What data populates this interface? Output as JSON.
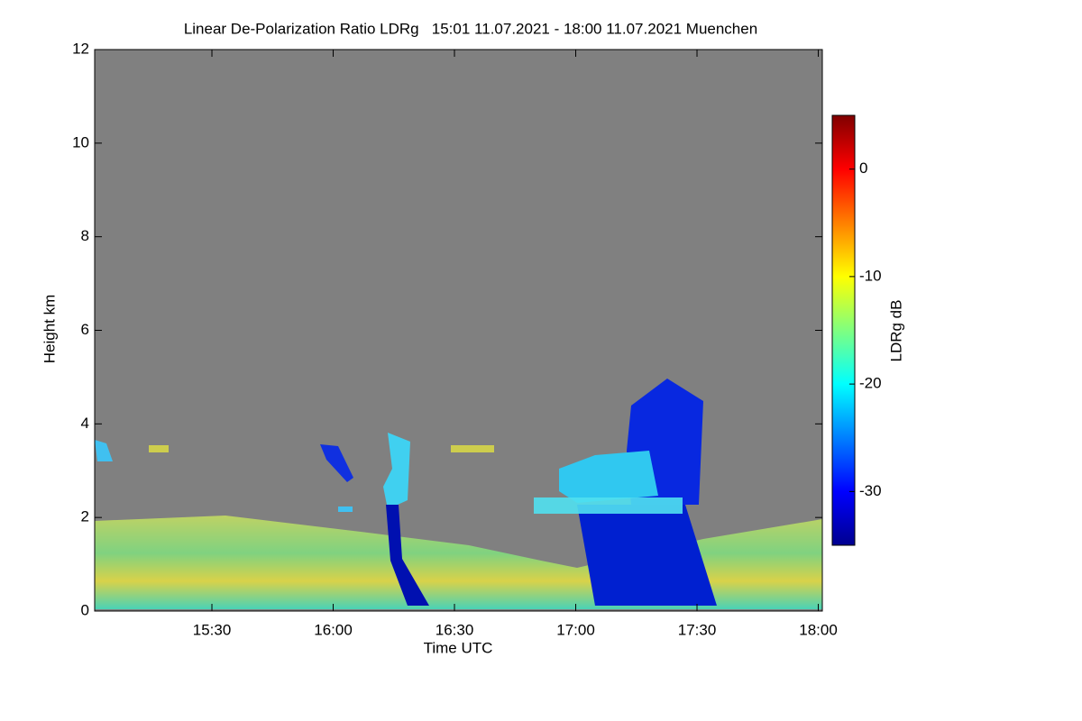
{
  "chart_data": {
    "type": "heatmap",
    "title": "Linear De-Polarization Ratio LDRg   15:01 11.07.2021 - 18:00 11.07.2021 Muenchen",
    "xlabel": "Time UTC",
    "ylabel": "Height km",
    "xlim": [
      901,
      1081
    ],
    "xticks": [
      {
        "value": 930,
        "label": "15:30"
      },
      {
        "value": 960,
        "label": "16:00"
      },
      {
        "value": 990,
        "label": "16:30"
      },
      {
        "value": 1020,
        "label": "17:00"
      },
      {
        "value": 1050,
        "label": "17:30"
      },
      {
        "value": 1080,
        "label": "18:00"
      }
    ],
    "ylim": [
      0,
      12
    ],
    "yticks": [
      0,
      2,
      4,
      6,
      8,
      10,
      12
    ],
    "background": "#808080",
    "colorbar": {
      "label": "LDRg dB",
      "lim": [
        -35,
        5
      ],
      "ticks": [
        0,
        -10,
        -20,
        -30
      ],
      "colormap": "jet"
    }
  }
}
